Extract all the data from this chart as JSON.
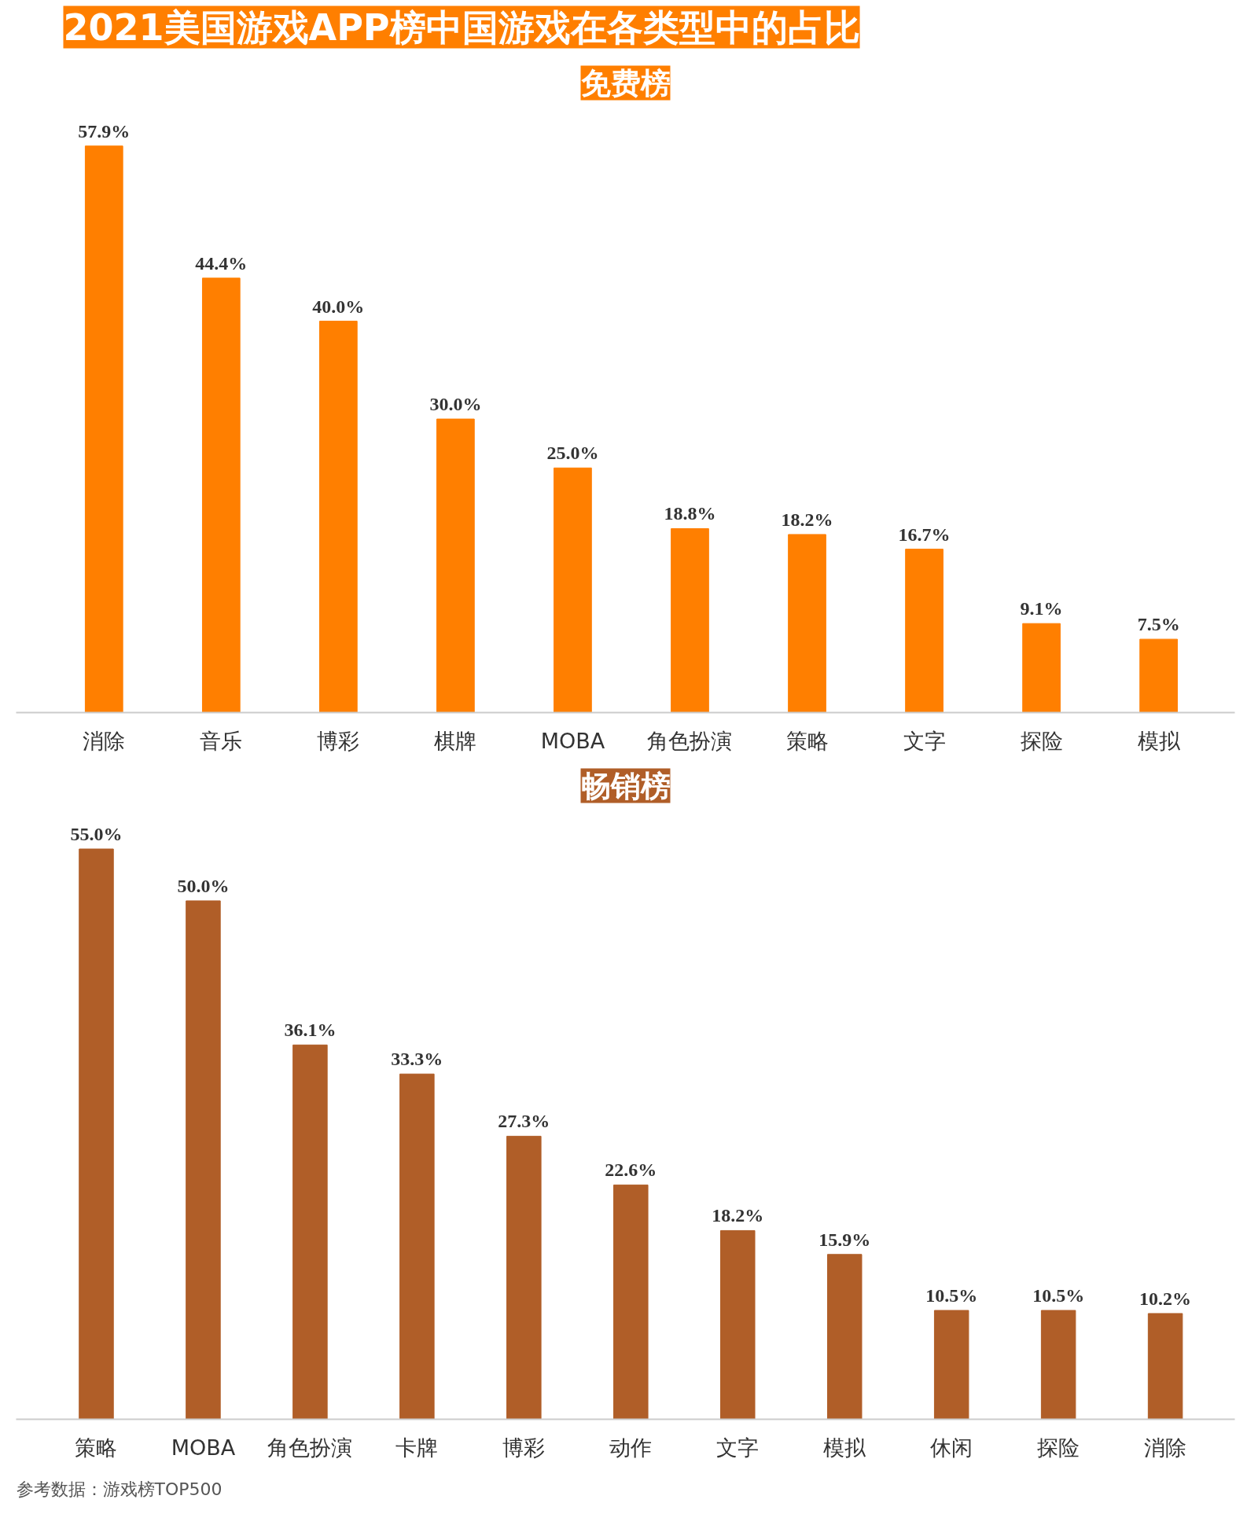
{
  "chart_data": [
    {
      "type": "bar",
      "title": "2021美国游戏APP榜中国游戏在各类型中的占比",
      "subtitle": "免费榜",
      "categories": [
        "消除",
        "音乐",
        "博彩",
        "棋牌",
        "MOBA",
        "角色扮演",
        "策略",
        "文字",
        "探险",
        "模拟"
      ],
      "values": [
        57.9,
        44.4,
        40.0,
        30.0,
        25.0,
        18.8,
        18.2,
        16.7,
        9.1,
        7.5
      ],
      "value_labels": [
        "57.9%",
        "44.4%",
        "40.0%",
        "30.0%",
        "25.0%",
        "18.8%",
        "18.2%",
        "16.7%",
        "9.1%",
        "7.5%"
      ],
      "color": "#ff7f00",
      "grid": false,
      "tick_labels": "x"
    },
    {
      "type": "bar",
      "title": "畅销榜",
      "categories": [
        "策略",
        "MOBA",
        "角色扮演",
        "卡牌",
        "博彩",
        "动作",
        "文字",
        "模拟",
        "休闲",
        "探险",
        "消除"
      ],
      "values": [
        55.0,
        50.0,
        36.1,
        33.3,
        27.3,
        22.6,
        18.2,
        15.9,
        10.5,
        10.5,
        10.2
      ],
      "value_labels": [
        "55.0%",
        "50.0%",
        "36.1%",
        "33.3%",
        "27.3%",
        "22.6%",
        "18.2%",
        "15.9%",
        "10.5%",
        "10.5%",
        "10.2%"
      ],
      "color": "#b05e28",
      "grid": false,
      "tick_labels": "x",
      "annotations": [
        "参考数据：游戏榜TOP500"
      ]
    }
  ]
}
